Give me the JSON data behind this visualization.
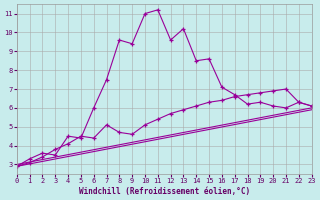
{
  "xlabel": "Windchill (Refroidissement éolien,°C)",
  "background_color": "#c8ecec",
  "grid_color": "#aaaaaa",
  "line_color": "#990099",
  "xlim": [
    0,
    23
  ],
  "ylim": [
    2.5,
    11.5
  ],
  "yticks": [
    3,
    4,
    5,
    6,
    7,
    8,
    9,
    10,
    11
  ],
  "xticks": [
    0,
    1,
    2,
    3,
    4,
    5,
    6,
    7,
    8,
    9,
    10,
    11,
    12,
    13,
    14,
    15,
    16,
    17,
    18,
    19,
    20,
    21,
    22,
    23
  ],
  "series1_x": [
    0,
    1,
    2,
    3,
    4,
    5,
    6,
    7,
    8,
    9,
    10,
    11,
    12,
    13,
    14,
    15,
    16,
    17,
    18,
    19,
    20,
    21,
    22,
    23
  ],
  "series1_y": [
    2.9,
    3.3,
    3.6,
    3.5,
    4.5,
    4.4,
    6.0,
    7.5,
    9.6,
    9.4,
    11.0,
    11.2,
    9.6,
    10.2,
    8.5,
    8.6,
    7.1,
    6.7,
    6.2,
    6.3,
    6.1,
    6.0,
    6.3,
    6.1
  ],
  "series2_x": [
    0,
    1,
    2,
    3,
    4,
    5,
    6,
    7,
    8,
    9,
    10,
    11,
    12,
    13,
    14,
    15,
    16,
    17,
    18,
    19,
    20,
    21,
    22,
    23
  ],
  "series2_y": [
    2.9,
    3.1,
    3.4,
    3.8,
    4.1,
    4.5,
    4.4,
    5.1,
    4.7,
    4.6,
    5.1,
    5.4,
    5.7,
    5.9,
    6.1,
    6.3,
    6.4,
    6.6,
    6.7,
    6.8,
    6.9,
    7.0,
    6.3,
    6.1
  ],
  "series3_x": [
    0,
    23
  ],
  "series3_y": [
    3.0,
    6.0
  ],
  "series4_x": [
    0,
    23
  ],
  "series4_y": [
    2.9,
    5.9
  ]
}
